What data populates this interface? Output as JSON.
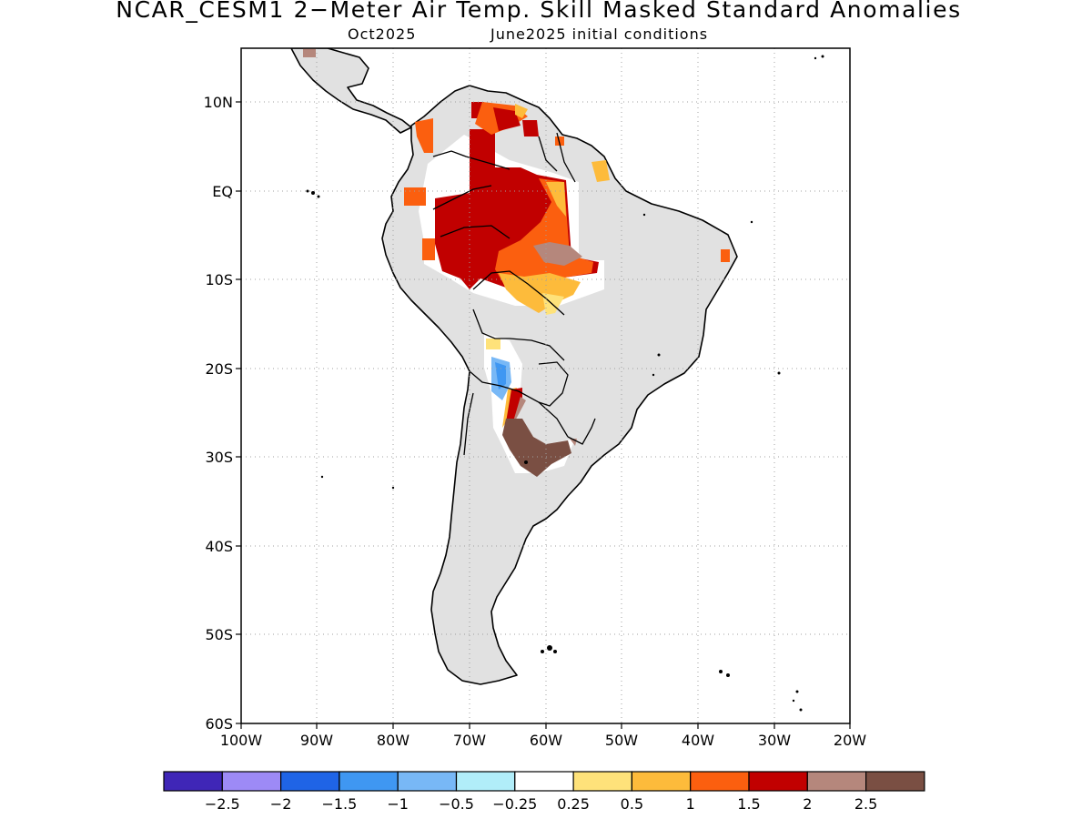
{
  "title": "NCAR_CESM1 2−Meter Air Temp. Skill Masked Standard Anomalies",
  "subtitle_left": "Oct2025",
  "subtitle_right": "June2025 initial conditions",
  "lat_labels": [
    "10N",
    "EQ",
    "10S",
    "20S",
    "30S",
    "40S",
    "50S",
    "60S"
  ],
  "lon_labels": [
    "100W",
    "90W",
    "80W",
    "70W",
    "60W",
    "50W",
    "40W",
    "30W",
    "20W"
  ],
  "colorbar": {
    "colors": [
      "#3f26b7",
      "#9d8af6",
      "#1f64e6",
      "#3f97f2",
      "#78b8f6",
      "#b1edf9",
      "#ffffff",
      "#fee27a",
      "#fdbb3b",
      "#fb5f0f",
      "#c10000",
      "#b5877c",
      "#7a4f43"
    ],
    "labels": [
      "−2.5",
      "−2",
      "−1.5",
      "−1",
      "−0.5",
      "−0.25",
      "0.25",
      "0.5",
      "1",
      "1.5",
      "2",
      "2.5"
    ]
  },
  "colors": {
    "land_masked": "#e1e1e1",
    "coast": "#000000",
    "grid": "#a0a0a0"
  }
}
